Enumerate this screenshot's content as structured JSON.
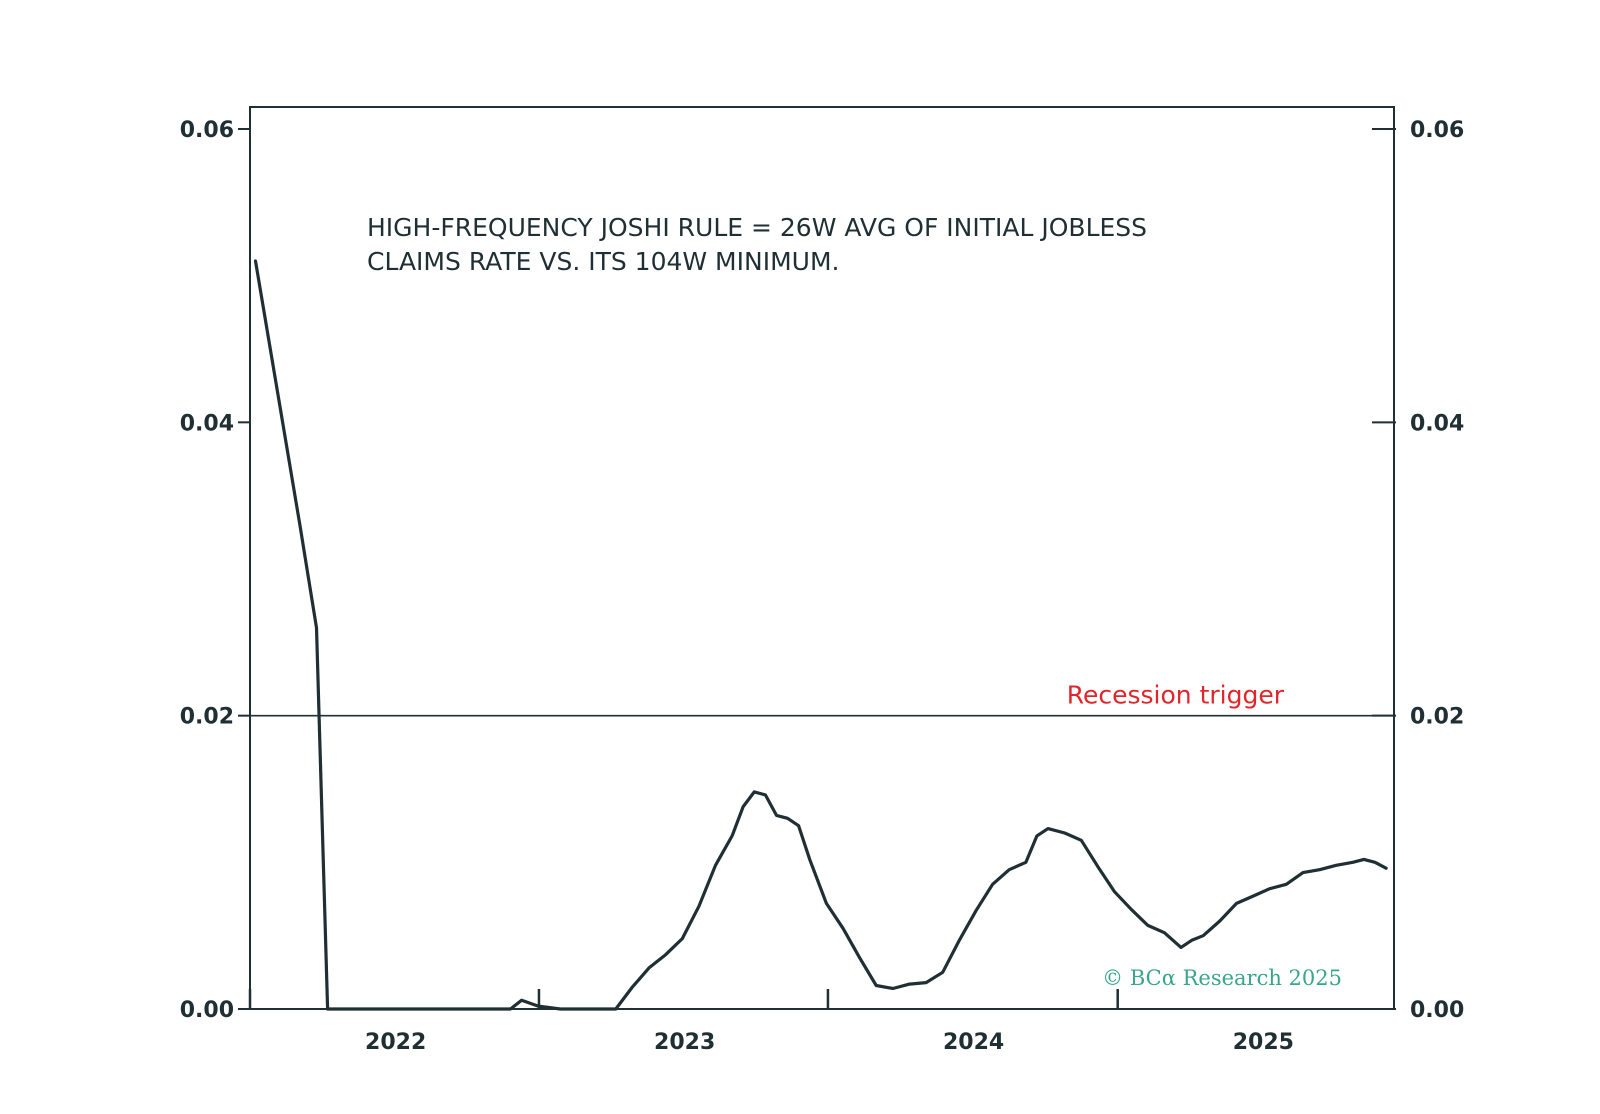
{
  "chart_data": {
    "type": "line",
    "title": "",
    "xlabel": "",
    "ylabel": "",
    "annotation_lines": [
      "HIGH-FREQUENCY JOSHI RULE = 26W AVG OF INITIAL JOBLESS",
      "CLAIMS RATE VS. ITS 104W MINIMUM."
    ],
    "reference_line": {
      "value": 0.02,
      "label": "Recession trigger",
      "color": "#e0262b"
    },
    "ylim": [
      0.0,
      0.0615
    ],
    "xlim": [
      "2021-07-01",
      "2025-06-15"
    ],
    "grid": false,
    "legend": "none",
    "y_ticks": [
      "0.00",
      "0.02",
      "0.04",
      "0.06"
    ],
    "y_tick_values": [
      0.0,
      0.02,
      0.04,
      0.06
    ],
    "x_tick_labels": [
      "2022",
      "2023",
      "2024",
      "2025"
    ],
    "x_tick_label_dates": [
      "2022-01-01",
      "2023-01-01",
      "2024-01-01",
      "2025-01-01"
    ],
    "x_tick_mark_dates": [
      "2021-07-01",
      "2022-07-01",
      "2023-07-01",
      "2024-07-01"
    ],
    "line_color": "#1f2f33",
    "series": [
      {
        "x": [
          "2021-07-08",
          "2021-08-05",
          "2021-09-02",
          "2021-09-23",
          "2021-10-07",
          "2021-10-28",
          "2021-11-25",
          "2021-12-23",
          "2022-01-20",
          "2022-02-17",
          "2022-03-17",
          "2022-04-14",
          "2022-05-12",
          "2022-05-26",
          "2022-06-09",
          "2022-06-30",
          "2022-07-28",
          "2022-08-25",
          "2022-09-22",
          "2022-10-06",
          "2022-10-27",
          "2022-11-17",
          "2022-12-08",
          "2022-12-29",
          "2023-01-19",
          "2023-02-09",
          "2023-03-02",
          "2023-03-16",
          "2023-03-30",
          "2023-04-13",
          "2023-04-27",
          "2023-05-11",
          "2023-05-25",
          "2023-06-08",
          "2023-06-29",
          "2023-07-20",
          "2023-08-10",
          "2023-08-31",
          "2023-09-21",
          "2023-10-12",
          "2023-11-02",
          "2023-11-23",
          "2023-12-14",
          "2024-01-04",
          "2024-01-25",
          "2024-02-15",
          "2024-03-07",
          "2024-03-21",
          "2024-04-04",
          "2024-04-25",
          "2024-05-16",
          "2024-06-06",
          "2024-06-27",
          "2024-07-18",
          "2024-08-08",
          "2024-08-29",
          "2024-09-19",
          "2024-10-03",
          "2024-10-17",
          "2024-11-07",
          "2024-11-28",
          "2024-12-19",
          "2025-01-09",
          "2025-01-30",
          "2025-02-20",
          "2025-03-13",
          "2025-04-03",
          "2025-04-24",
          "2025-05-08",
          "2025-05-22",
          "2025-06-05"
        ],
        "values": [
          0.051,
          0.042,
          0.033,
          0.026,
          0.0,
          0.0,
          0.0,
          0.0,
          0.0,
          0.0,
          0.0,
          0.0,
          0.0,
          0.0,
          0.0006,
          0.0002,
          0.0,
          0.0,
          0.0,
          0.0,
          0.0015,
          0.0028,
          0.0037,
          0.0048,
          0.007,
          0.0098,
          0.0118,
          0.0138,
          0.0148,
          0.0146,
          0.0132,
          0.013,
          0.0125,
          0.0102,
          0.0072,
          0.0055,
          0.0035,
          0.0016,
          0.0014,
          0.0017,
          0.0018,
          0.0025,
          0.0047,
          0.0067,
          0.0085,
          0.0095,
          0.01,
          0.0118,
          0.0123,
          0.012,
          0.0115,
          0.0097,
          0.008,
          0.0068,
          0.0057,
          0.0052,
          0.0042,
          0.0047,
          0.005,
          0.006,
          0.0072,
          0.0077,
          0.0082,
          0.0085,
          0.0093,
          0.0095,
          0.0098,
          0.01,
          0.0102,
          0.01,
          0.0096
        ]
      }
    ]
  },
  "watermark": "© BCα Research 2025"
}
